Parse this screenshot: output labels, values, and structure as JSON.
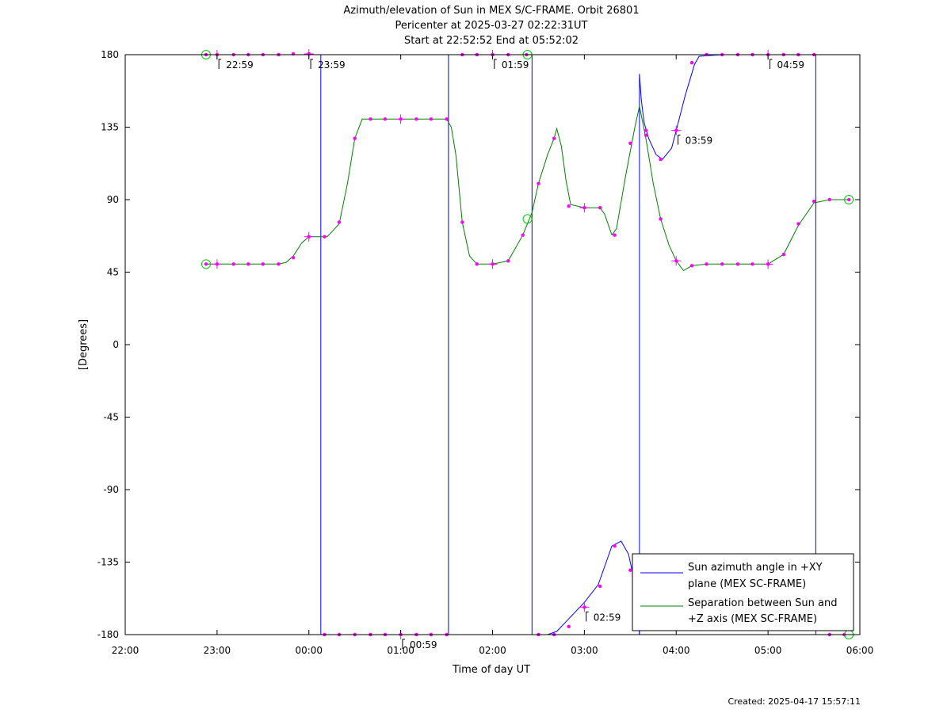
{
  "chart_data": {
    "type": "line",
    "title": [
      "Azimuth/elevation of Sun in MEX S/C-FRAME.  Orbit 26801",
      "Pericenter at 2025-03-27 02:22:31UT",
      "Start at 22:52:52 End at 05:52:02"
    ],
    "xlabel": "Time of day UT",
    "ylabel": "[Degrees]",
    "xlim": [
      -2,
      6
    ],
    "ylim": [
      -180,
      180
    ],
    "x_ticks": [
      -2,
      -1,
      0,
      1,
      2,
      3,
      4,
      5,
      6
    ],
    "x_tick_labels": [
      "22:00",
      "23:00",
      "00:00",
      "01:00",
      "02:00",
      "03:00",
      "04:00",
      "05:00",
      "06:00"
    ],
    "y_ticks": [
      180,
      135,
      90,
      45,
      0,
      -45,
      -90,
      -135,
      -180
    ],
    "y_tick_labels": [
      "180",
      "135",
      "90",
      "45",
      "0",
      "-45",
      "-90",
      "-135",
      "-180"
    ],
    "grid": false,
    "legend_position": "bottom-right",
    "series": [
      {
        "name": "Sun azimuth angle in +XY plane (MEX SC-FRAME)",
        "legend_lines": [
          "Sun azimuth angle in +XY",
          "plane (MEX SC-FRAME)"
        ],
        "color": "#0000ff",
        "segments": [
          [
            [
              -1.12,
              180
            ],
            [
              -1.0,
              180
            ],
            [
              -0.5,
              180
            ],
            [
              0.0,
              180.5
            ],
            [
              0.1,
              181
            ],
            [
              0.13,
              182
            ]
          ],
          [
            [
              0.13,
              -180
            ],
            [
              0.5,
              -180
            ],
            [
              1.0,
              -180
            ],
            [
              1.5,
              -180
            ],
            [
              1.52,
              -180
            ]
          ],
          [
            [
              1.52,
              180
            ],
            [
              2.0,
              180
            ],
            [
              2.35,
              180
            ],
            [
              2.43,
              180
            ]
          ],
          [
            [
              2.43,
              -180
            ],
            [
              2.6,
              -180
            ],
            [
              2.7,
              -178
            ],
            [
              2.8,
              -172
            ],
            [
              3.0,
              -160
            ],
            [
              3.15,
              -149
            ],
            [
              3.3,
              -125
            ],
            [
              3.4,
              -122
            ],
            [
              3.48,
              -130
            ],
            [
              3.55,
              -148
            ],
            [
              3.59,
              -165
            ],
            [
              3.6,
              -180
            ]
          ],
          [
            [
              3.6,
              168
            ],
            [
              3.62,
              152
            ],
            [
              3.65,
              138
            ],
            [
              3.7,
              128
            ],
            [
              3.78,
              118
            ],
            [
              3.85,
              115
            ],
            [
              3.95,
              122
            ],
            [
              4.0,
              133
            ],
            [
              4.1,
              155
            ],
            [
              4.2,
              174
            ],
            [
              4.25,
              179
            ],
            [
              4.5,
              180
            ],
            [
              5.0,
              180
            ],
            [
              5.2,
              180
            ],
            [
              5.5,
              180.5
            ],
            [
              5.52,
              181
            ]
          ],
          [
            [
              5.52,
              -180
            ],
            [
              5.7,
              -180
            ],
            [
              5.9,
              -180
            ]
          ]
        ],
        "markers": [
          [
            -1.12,
            180
          ],
          [
            -1.0,
            180
          ],
          [
            -0.82,
            180
          ],
          [
            -0.66,
            180
          ],
          [
            -0.5,
            180
          ],
          [
            -0.33,
            180
          ],
          [
            -0.17,
            180.5
          ],
          [
            0.0,
            180.5
          ],
          [
            0.17,
            -180
          ],
          [
            0.33,
            -180
          ],
          [
            0.5,
            -180
          ],
          [
            0.67,
            -180
          ],
          [
            0.83,
            -180
          ],
          [
            1.0,
            -180
          ],
          [
            1.17,
            -180
          ],
          [
            1.33,
            -180
          ],
          [
            1.5,
            -180
          ],
          [
            1.67,
            180
          ],
          [
            1.83,
            180
          ],
          [
            2.0,
            180
          ],
          [
            2.17,
            180
          ],
          [
            2.37,
            180
          ],
          [
            2.5,
            -180
          ],
          [
            2.67,
            -180
          ],
          [
            2.83,
            -175
          ],
          [
            3.0,
            -163
          ],
          [
            3.17,
            -150
          ],
          [
            3.33,
            -125
          ],
          [
            3.5,
            -140
          ],
          [
            3.67,
            133
          ],
          [
            3.83,
            115
          ],
          [
            4.0,
            133
          ],
          [
            4.17,
            175
          ],
          [
            4.33,
            180
          ],
          [
            4.5,
            180
          ],
          [
            4.67,
            180
          ],
          [
            4.83,
            180
          ],
          [
            5.0,
            180
          ],
          [
            5.17,
            180
          ],
          [
            5.33,
            180
          ],
          [
            5.5,
            180
          ],
          [
            5.67,
            -180
          ],
          [
            5.83,
            -180
          ]
        ]
      },
      {
        "name": "Separation between Sun and +Z axis (MEX SC-FRAME)",
        "legend_lines": [
          "Separation between Sun and",
          "+Z axis (MEX SC-FRAME)"
        ],
        "color": "#008000",
        "points": [
          [
            -1.12,
            50
          ],
          [
            -1.0,
            50
          ],
          [
            -0.5,
            50
          ],
          [
            -0.33,
            50
          ],
          [
            -0.25,
            51
          ],
          [
            -0.17,
            55
          ],
          [
            -0.08,
            63
          ],
          [
            0.0,
            67
          ],
          [
            0.2,
            67
          ],
          [
            0.25,
            70
          ],
          [
            0.33,
            75
          ],
          [
            0.42,
            100
          ],
          [
            0.5,
            128
          ],
          [
            0.58,
            140
          ],
          [
            0.67,
            140
          ],
          [
            1.0,
            140
          ],
          [
            1.25,
            140
          ],
          [
            1.5,
            140
          ],
          [
            1.55,
            135
          ],
          [
            1.6,
            118
          ],
          [
            1.67,
            76
          ],
          [
            1.75,
            55
          ],
          [
            1.83,
            50
          ],
          [
            2.0,
            50
          ],
          [
            2.17,
            52
          ],
          [
            2.33,
            68
          ],
          [
            2.43,
            82
          ],
          [
            2.5,
            100
          ],
          [
            2.6,
            118
          ],
          [
            2.67,
            128
          ],
          [
            2.7,
            134
          ],
          [
            2.75,
            123
          ],
          [
            2.8,
            102
          ],
          [
            2.85,
            87
          ],
          [
            3.0,
            85
          ],
          [
            3.17,
            85
          ],
          [
            3.22,
            81
          ],
          [
            3.3,
            68
          ],
          [
            3.35,
            72
          ],
          [
            3.45,
            105
          ],
          [
            3.55,
            135
          ],
          [
            3.6,
            148
          ],
          [
            3.67,
            128
          ],
          [
            3.75,
            100
          ],
          [
            3.83,
            78
          ],
          [
            3.92,
            62
          ],
          [
            4.0,
            52
          ],
          [
            4.08,
            46
          ],
          [
            4.17,
            49
          ],
          [
            4.33,
            50
          ],
          [
            4.5,
            50
          ],
          [
            5.0,
            50
          ],
          [
            5.17,
            56
          ],
          [
            5.33,
            74
          ],
          [
            5.5,
            88
          ],
          [
            5.67,
            90
          ],
          [
            5.88,
            90
          ]
        ],
        "markers": [
          [
            -1.12,
            50
          ],
          [
            -1.0,
            50
          ],
          [
            -0.82,
            50
          ],
          [
            -0.66,
            50
          ],
          [
            -0.5,
            50
          ],
          [
            -0.33,
            50
          ],
          [
            -0.17,
            54
          ],
          [
            0.0,
            67
          ],
          [
            0.17,
            67
          ],
          [
            0.33,
            76
          ],
          [
            0.5,
            128
          ],
          [
            0.67,
            140
          ],
          [
            0.83,
            140
          ],
          [
            1.0,
            140
          ],
          [
            1.17,
            140
          ],
          [
            1.33,
            140
          ],
          [
            1.5,
            140
          ],
          [
            1.67,
            76
          ],
          [
            1.83,
            50
          ],
          [
            2.0,
            50
          ],
          [
            2.17,
            52
          ],
          [
            2.33,
            68
          ],
          [
            2.5,
            100
          ],
          [
            2.67,
            128
          ],
          [
            2.83,
            86
          ],
          [
            3.0,
            85
          ],
          [
            3.17,
            85
          ],
          [
            3.33,
            68
          ],
          [
            3.5,
            125
          ],
          [
            3.67,
            130
          ],
          [
            3.83,
            78
          ],
          [
            4.0,
            52
          ],
          [
            4.17,
            49
          ],
          [
            4.33,
            50
          ],
          [
            4.5,
            50
          ],
          [
            4.67,
            50
          ],
          [
            4.83,
            50
          ],
          [
            5.0,
            50
          ],
          [
            5.17,
            56
          ],
          [
            5.33,
            75
          ],
          [
            5.5,
            89
          ],
          [
            5.67,
            90
          ],
          [
            5.88,
            90
          ]
        ]
      }
    ],
    "start_end_markers": [
      [
        -1.12,
        180
      ],
      [
        -1.12,
        50
      ],
      [
        2.38,
        180
      ],
      [
        2.38,
        78
      ],
      [
        5.88,
        90
      ],
      [
        5.88,
        -180
      ]
    ],
    "hour_marks": [
      [
        -1.0,
        180
      ],
      [
        0.0,
        180.5
      ],
      [
        1.0,
        -180
      ],
      [
        2.0,
        180
      ],
      [
        3.0,
        -163
      ],
      [
        4.0,
        133
      ],
      [
        5.0,
        180
      ],
      [
        -1.0,
        50
      ],
      [
        0.0,
        67
      ],
      [
        1.0,
        140
      ],
      [
        2.0,
        50
      ],
      [
        3.0,
        85
      ],
      [
        4.0,
        52
      ],
      [
        5.0,
        50
      ]
    ],
    "annotations": [
      {
        "text": "22:59",
        "x": -0.98,
        "y": 180,
        "dir": "down"
      },
      {
        "text": "23:59",
        "x": 0.02,
        "y": 180,
        "dir": "down"
      },
      {
        "text": "00:59",
        "x": 1.02,
        "y": -180,
        "dir": "down"
      },
      {
        "text": "01:59",
        "x": 2.02,
        "y": 180,
        "dir": "down"
      },
      {
        "text": "02:59",
        "x": 3.02,
        "y": -163,
        "dir": "down"
      },
      {
        "text": "03:59",
        "x": 4.02,
        "y": 133,
        "dir": "down"
      },
      {
        "text": "04:59",
        "x": 5.02,
        "y": 180,
        "dir": "down"
      }
    ],
    "footer": "Created: 2025-04-17 15:57:11"
  }
}
